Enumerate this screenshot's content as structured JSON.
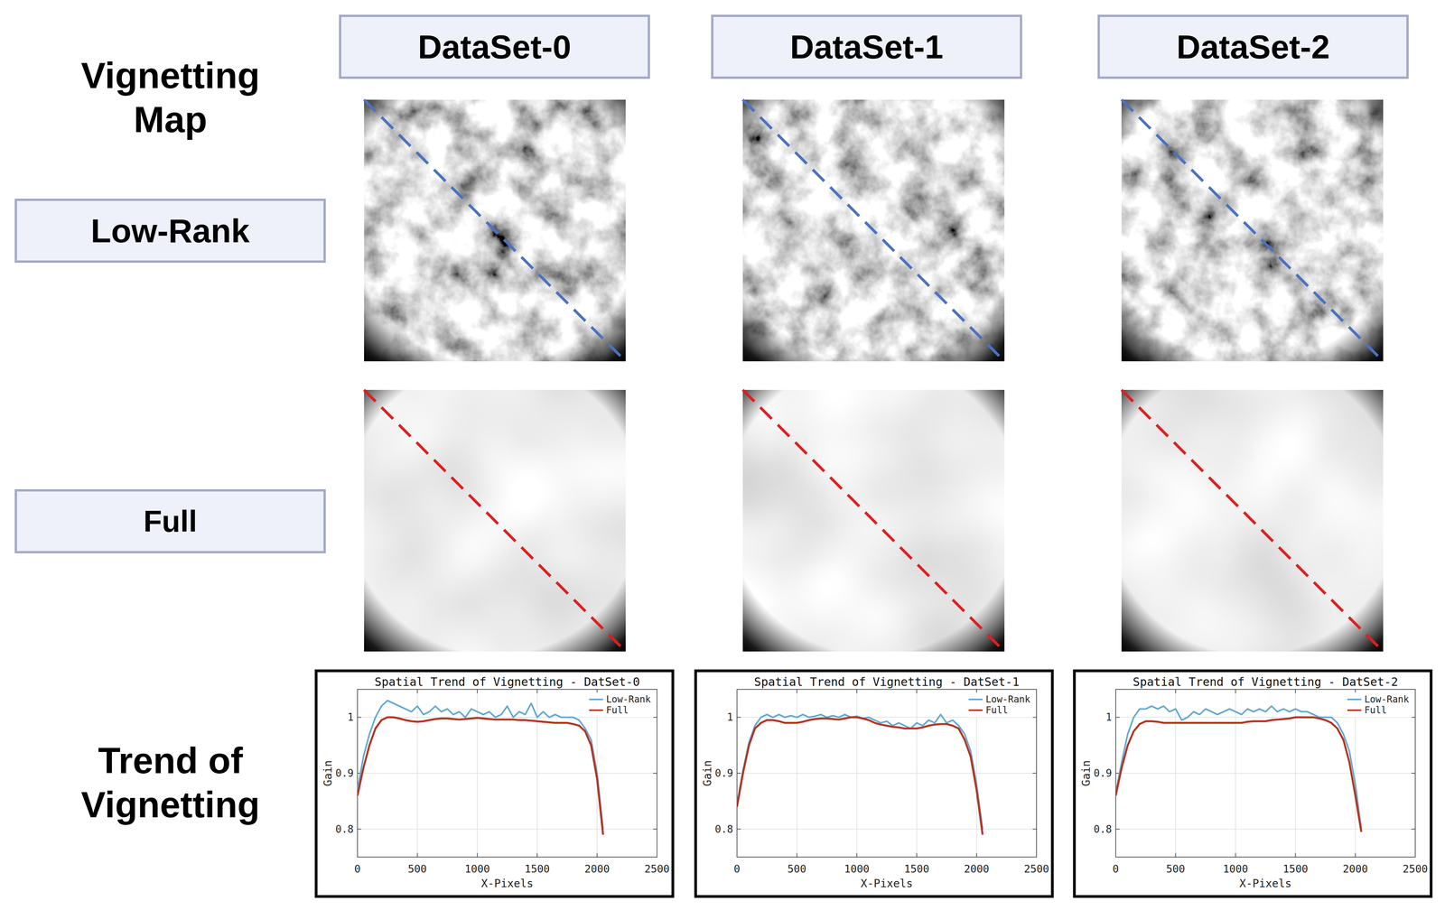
{
  "figure": {
    "row_title": "Vignetting Map",
    "column_headers": [
      "DataSet-0",
      "DataSet-1",
      "DataSet-2"
    ],
    "row_labels": [
      "Low-Rank",
      "Full",
      "Trend of Vignetting"
    ]
  },
  "chart_data": [
    {
      "type": "line",
      "title": "Spatial Trend of Vignetting - DatSet-0",
      "x_label": "X-Pixels",
      "y_label": "Gain",
      "x": [
        0,
        50,
        100,
        150,
        200,
        250,
        300,
        350,
        400,
        450,
        500,
        550,
        600,
        650,
        700,
        750,
        800,
        850,
        900,
        950,
        1000,
        1050,
        1100,
        1150,
        1200,
        1250,
        1300,
        1350,
        1400,
        1450,
        1500,
        1550,
        1600,
        1650,
        1700,
        1750,
        1800,
        1850,
        1900,
        1950,
        2000,
        2050
      ],
      "series": [
        {
          "name": "Low-Rank",
          "color": "#5fa8d3",
          "values": [
            0.87,
            0.93,
            0.97,
            1.0,
            1.02,
            1.03,
            1.025,
            1.02,
            1.015,
            1.01,
            1.02,
            1.005,
            1.01,
            1.02,
            1.01,
            1.015,
            1.005,
            1.01,
            1.0,
            1.015,
            1.01,
            1.005,
            1.01,
            1.0,
            1.005,
            1.02,
            1.0,
            1.01,
            1.005,
            1.025,
            1.0,
            1.01,
            1.0,
            1.005,
            1.0,
            1.0,
            1.0,
            0.995,
            0.98,
            0.96,
            0.9,
            0.8
          ]
        },
        {
          "name": "Full",
          "color": "#b8321e",
          "values": [
            0.86,
            0.91,
            0.95,
            0.98,
            0.995,
            1.0,
            1.0,
            0.998,
            0.995,
            0.993,
            0.992,
            0.993,
            0.995,
            0.997,
            0.998,
            0.998,
            0.997,
            0.996,
            0.997,
            0.998,
            0.999,
            0.998,
            0.997,
            0.996,
            0.996,
            0.996,
            0.996,
            0.995,
            0.995,
            0.994,
            0.993,
            0.992,
            0.991,
            0.99,
            0.99,
            0.99,
            0.988,
            0.985,
            0.975,
            0.95,
            0.89,
            0.79
          ]
        }
      ],
      "xlim": [
        0,
        2500
      ],
      "ylim": [
        0.75,
        1.05
      ],
      "xticks": [
        0,
        500,
        1000,
        1500,
        2000,
        2500
      ],
      "yticks": [
        0.8,
        0.9,
        1
      ],
      "grid": true,
      "legend": "upper right"
    },
    {
      "type": "line",
      "title": "Spatial Trend of Vignetting - DatSet-1",
      "x_label": "X-Pixels",
      "y_label": "Gain",
      "x": [
        0,
        50,
        100,
        150,
        200,
        250,
        300,
        350,
        400,
        450,
        500,
        550,
        600,
        650,
        700,
        750,
        800,
        850,
        900,
        950,
        1000,
        1050,
        1100,
        1150,
        1200,
        1250,
        1300,
        1350,
        1400,
        1450,
        1500,
        1550,
        1600,
        1650,
        1700,
        1750,
        1800,
        1850,
        1900,
        1950,
        2000,
        2050
      ],
      "series": [
        {
          "name": "Low-Rank",
          "color": "#5fa8d3",
          "values": [
            0.845,
            0.905,
            0.955,
            0.985,
            1.0,
            1.005,
            1.0,
            1.005,
            1.0,
            1.003,
            1.0,
            1.005,
            1.0,
            1.002,
            1.005,
            1.0,
            1.003,
            1.0,
            1.005,
            1.0,
            1.002,
            0.998,
            1.0,
            0.995,
            0.99,
            0.993,
            0.985,
            0.99,
            0.985,
            0.98,
            0.99,
            0.985,
            0.995,
            0.99,
            1.005,
            0.99,
            0.995,
            0.985,
            0.97,
            0.94,
            0.88,
            0.8
          ]
        },
        {
          "name": "Full",
          "color": "#b8321e",
          "values": [
            0.84,
            0.9,
            0.95,
            0.98,
            0.99,
            0.995,
            0.995,
            0.993,
            0.99,
            0.99,
            0.99,
            0.992,
            0.995,
            0.997,
            0.998,
            0.998,
            0.997,
            0.996,
            0.998,
            1.0,
            1.0,
            0.998,
            0.995,
            0.99,
            0.987,
            0.985,
            0.983,
            0.982,
            0.98,
            0.98,
            0.98,
            0.982,
            0.985,
            0.987,
            0.988,
            0.988,
            0.985,
            0.98,
            0.96,
            0.93,
            0.87,
            0.79
          ]
        }
      ],
      "xlim": [
        0,
        2500
      ],
      "ylim": [
        0.75,
        1.05
      ],
      "xticks": [
        0,
        500,
        1000,
        1500,
        2000,
        2500
      ],
      "yticks": [
        0.8,
        0.9,
        1
      ],
      "grid": true,
      "legend": "upper right"
    },
    {
      "type": "line",
      "title": "Spatial Trend of Vignetting - DatSet-2",
      "x_label": "X-Pixels",
      "y_label": "Gain",
      "x": [
        0,
        50,
        100,
        150,
        200,
        250,
        300,
        350,
        400,
        450,
        500,
        550,
        600,
        650,
        700,
        750,
        800,
        850,
        900,
        950,
        1000,
        1050,
        1100,
        1150,
        1200,
        1250,
        1300,
        1350,
        1400,
        1450,
        1500,
        1550,
        1600,
        1650,
        1700,
        1750,
        1800,
        1850,
        1900,
        1950,
        2000,
        2050
      ],
      "series": [
        {
          "name": "Low-Rank",
          "color": "#5fa8d3",
          "values": [
            0.865,
            0.92,
            0.97,
            1.0,
            1.015,
            1.015,
            1.02,
            1.015,
            1.02,
            1.01,
            1.015,
            0.995,
            1.0,
            1.01,
            1.005,
            1.015,
            1.01,
            1.005,
            1.01,
            1.015,
            1.01,
            1.005,
            1.015,
            1.01,
            1.015,
            1.01,
            1.02,
            1.01,
            1.015,
            1.01,
            1.015,
            1.01,
            1.01,
            1.005,
            1.0,
            1.0,
            1.0,
            0.99,
            0.97,
            0.94,
            0.88,
            0.8
          ]
        },
        {
          "name": "Full",
          "color": "#b8321e",
          "values": [
            0.86,
            0.91,
            0.95,
            0.975,
            0.988,
            0.993,
            0.993,
            0.992,
            0.99,
            0.99,
            0.99,
            0.99,
            0.99,
            0.99,
            0.99,
            0.99,
            0.99,
            0.99,
            0.99,
            0.99,
            0.99,
            0.99,
            0.992,
            0.993,
            0.993,
            0.993,
            0.995,
            0.996,
            0.997,
            0.998,
            1.0,
            1.0,
            1.0,
            1.0,
            0.998,
            0.995,
            0.99,
            0.98,
            0.96,
            0.92,
            0.86,
            0.795
          ]
        }
      ],
      "xlim": [
        0,
        2500
      ],
      "ylim": [
        0.75,
        1.05
      ],
      "xticks": [
        0,
        500,
        1000,
        1500,
        2000,
        2500
      ],
      "yticks": [
        0.8,
        0.9,
        1
      ],
      "grid": true,
      "legend": "upper right"
    }
  ]
}
